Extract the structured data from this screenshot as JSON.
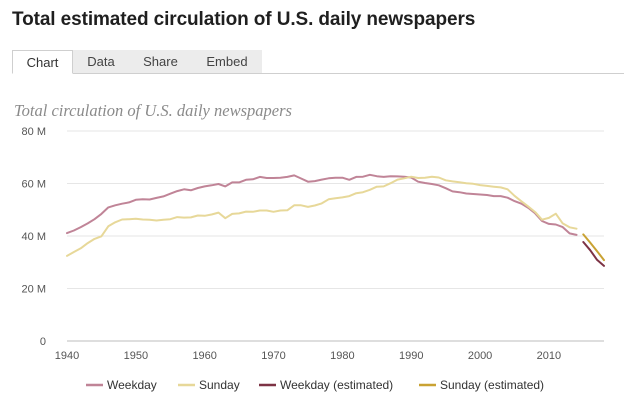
{
  "page": {
    "title": "Total estimated circulation of U.S. daily newspapers"
  },
  "tabs": [
    {
      "label": "Chart",
      "active": true
    },
    {
      "label": "Data",
      "active": false
    },
    {
      "label": "Share",
      "active": false
    },
    {
      "label": "Embed",
      "active": false
    }
  ],
  "chart_data": {
    "type": "line",
    "title": "Total circulation of U.S. daily newspapers",
    "xlabel": "",
    "ylabel": "",
    "xlim": [
      1940,
      2018
    ],
    "ylim": [
      0,
      80
    ],
    "x_ticks": [
      1940,
      1950,
      1960,
      1970,
      1980,
      1990,
      2000,
      2010
    ],
    "y_ticks": [
      {
        "value": 0,
        "label": "0"
      },
      {
        "value": 20,
        "label": "20 M"
      },
      {
        "value": 40,
        "label": "40 M"
      },
      {
        "value": 60,
        "label": "60 M"
      },
      {
        "value": 80,
        "label": "80 M"
      }
    ],
    "grid": "horizontal",
    "legend_position": "bottom",
    "series": [
      {
        "name": "Weekday",
        "color": "#c08497",
        "x": [
          1940,
          1941,
          1942,
          1943,
          1944,
          1945,
          1946,
          1947,
          1948,
          1949,
          1950,
          1951,
          1952,
          1953,
          1954,
          1955,
          1956,
          1957,
          1958,
          1959,
          1960,
          1961,
          1962,
          1963,
          1964,
          1965,
          1966,
          1967,
          1968,
          1969,
          1970,
          1971,
          1972,
          1973,
          1974,
          1975,
          1976,
          1977,
          1978,
          1979,
          1980,
          1981,
          1982,
          1983,
          1984,
          1985,
          1986,
          1987,
          1988,
          1989,
          1990,
          1991,
          1992,
          1993,
          1994,
          1995,
          1996,
          1997,
          1998,
          1999,
          2000,
          2001,
          2002,
          2003,
          2004,
          2005,
          2006,
          2007,
          2008,
          2009,
          2010,
          2011,
          2012,
          2013,
          2014
        ],
        "values": [
          41.1,
          42.1,
          43.4,
          44.8,
          46.4,
          48.4,
          50.9,
          51.7,
          52.3,
          52.8,
          53.8,
          54.0,
          53.9,
          54.5,
          55.1,
          56.1,
          57.1,
          57.8,
          57.4,
          58.3,
          58.9,
          59.3,
          59.8,
          58.9,
          60.4,
          60.4,
          61.4,
          61.6,
          62.5,
          62.1,
          62.1,
          62.2,
          62.5,
          63.1,
          61.9,
          60.7,
          60.9,
          61.5,
          62.0,
          62.2,
          62.2,
          61.4,
          62.5,
          62.6,
          63.3,
          62.8,
          62.5,
          62.8,
          62.7,
          62.6,
          62.3,
          60.7,
          60.2,
          59.8,
          59.3,
          58.2,
          57.0,
          56.7,
          56.2,
          56.0,
          55.8,
          55.6,
          55.2,
          55.2,
          54.6,
          53.3,
          52.3,
          50.7,
          48.6,
          45.7,
          44.6,
          44.4,
          43.4,
          41.0,
          40.4
        ]
      },
      {
        "name": "Sunday",
        "color": "#e7d899",
        "x": [
          1940,
          1941,
          1942,
          1943,
          1944,
          1945,
          1946,
          1947,
          1948,
          1949,
          1950,
          1951,
          1952,
          1953,
          1954,
          1955,
          1956,
          1957,
          1958,
          1959,
          1960,
          1961,
          1962,
          1963,
          1964,
          1965,
          1966,
          1967,
          1968,
          1969,
          1970,
          1971,
          1972,
          1973,
          1974,
          1975,
          1976,
          1977,
          1978,
          1979,
          1980,
          1981,
          1982,
          1983,
          1984,
          1985,
          1986,
          1987,
          1988,
          1989,
          1990,
          1991,
          1992,
          1993,
          1994,
          1995,
          1996,
          1997,
          1998,
          1999,
          2000,
          2001,
          2002,
          2003,
          2004,
          2005,
          2006,
          2007,
          2008,
          2009,
          2010,
          2011,
          2012,
          2013,
          2014
        ],
        "values": [
          32.4,
          33.9,
          35.3,
          37.3,
          38.9,
          39.9,
          43.7,
          45.2,
          46.3,
          46.4,
          46.6,
          46.3,
          46.2,
          45.9,
          46.2,
          46.4,
          47.2,
          47.0,
          47.1,
          47.8,
          47.7,
          48.2,
          48.9,
          46.8,
          48.4,
          48.6,
          49.3,
          49.2,
          49.7,
          49.7,
          49.2,
          49.7,
          49.8,
          51.7,
          51.7,
          51.1,
          51.6,
          52.4,
          54.0,
          54.4,
          54.7,
          55.2,
          56.3,
          56.7,
          57.6,
          58.8,
          58.9,
          60.1,
          61.5,
          62.0,
          62.6,
          62.1,
          62.2,
          62.6,
          62.3,
          61.2,
          60.8,
          60.5,
          60.1,
          59.9,
          59.4,
          59.1,
          58.8,
          58.5,
          57.8,
          55.3,
          53.2,
          51.2,
          49.1,
          46.2,
          46.9,
          48.5,
          44.8,
          43.3,
          42.8
        ]
      },
      {
        "name": "Weekday (estimated)",
        "color": "#7d3345",
        "x": [
          2015,
          2016,
          2017,
          2018
        ],
        "values": [
          37.7,
          34.6,
          30.9,
          28.6
        ]
      },
      {
        "name": "Sunday (estimated)",
        "color": "#c9a233",
        "x": [
          2015,
          2016,
          2017,
          2018
        ],
        "values": [
          40.6,
          37.5,
          34.2,
          30.8
        ]
      }
    ]
  }
}
